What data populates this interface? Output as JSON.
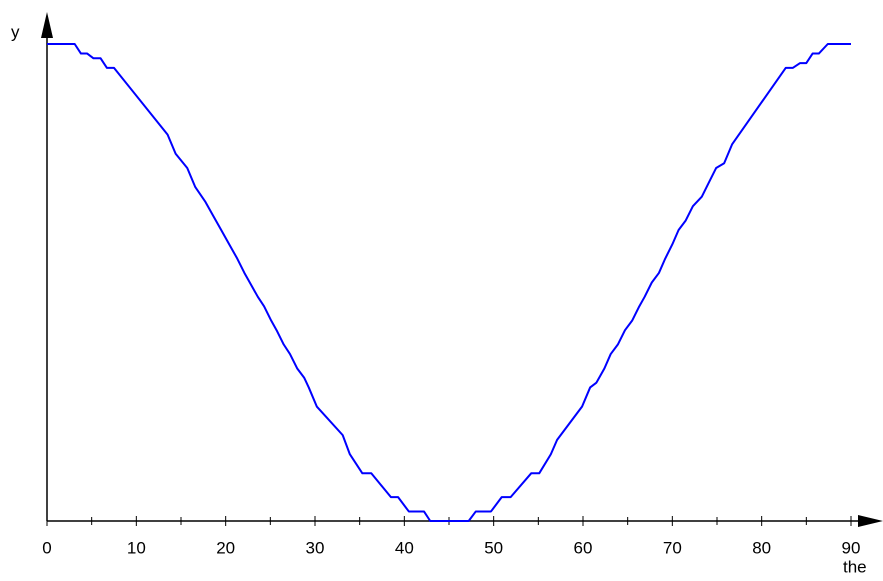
{
  "chart_data": {
    "type": "line",
    "xlabel": "the",
    "ylabel": "y",
    "xlim": [
      0,
      90
    ],
    "ylim": [
      0,
      1
    ],
    "xticks": [
      0,
      10,
      20,
      30,
      40,
      50,
      60,
      70,
      80,
      90
    ],
    "series": [
      {
        "color": "#0000ff",
        "x": [
          0,
          3.1,
          3.8,
          4.5,
          5.2,
          6.0,
          6.7,
          7.5,
          13.5,
          14.4,
          15.7,
          16.6,
          17.7,
          18.6,
          19.5,
          20.4,
          21.3,
          22.1,
          22.7,
          23.6,
          24.3,
          25.1,
          25.7,
          26.5,
          27.2,
          28.0,
          28.8,
          29.3,
          30.2,
          33.1,
          33.9,
          35.3,
          36.3,
          38.5,
          39.3,
          40.5,
          42.2,
          42.9,
          47.2,
          48.0,
          49.7,
          50.9,
          51.9,
          54.2,
          55.1,
          56.4,
          57.1,
          59.9,
          60.8,
          61.5,
          62.4,
          63.1,
          63.9,
          64.7,
          65.5,
          66.3,
          66.9,
          67.7,
          68.5,
          69.2,
          70.0,
          70.7,
          71.5,
          72.3,
          73.3,
          74.1,
          74.9,
          75.8,
          76.7,
          82.7,
          83.5,
          84.3,
          85.0,
          85.7,
          86.4,
          87.4,
          90
        ],
        "values": [
          1,
          1,
          0.98,
          0.98,
          0.97,
          0.97,
          0.95,
          0.95,
          0.81,
          0.77,
          0.74,
          0.7,
          0.67,
          0.64,
          0.61,
          0.58,
          0.55,
          0.52,
          0.5,
          0.47,
          0.45,
          0.42,
          0.4,
          0.37,
          0.35,
          0.32,
          0.3,
          0.28,
          0.24,
          0.18,
          0.14,
          0.1,
          0.1,
          0.05,
          0.05,
          0.02,
          0.02,
          0,
          0,
          0.02,
          0.02,
          0.05,
          0.05,
          0.1,
          0.1,
          0.14,
          0.17,
          0.24,
          0.28,
          0.29,
          0.32,
          0.35,
          0.37,
          0.4,
          0.42,
          0.45,
          0.47,
          0.5,
          0.52,
          0.55,
          0.58,
          0.61,
          0.63,
          0.66,
          0.68,
          0.71,
          0.74,
          0.75,
          0.79,
          0.95,
          0.95,
          0.96,
          0.96,
          0.98,
          0.98,
          1,
          1
        ]
      }
    ]
  }
}
